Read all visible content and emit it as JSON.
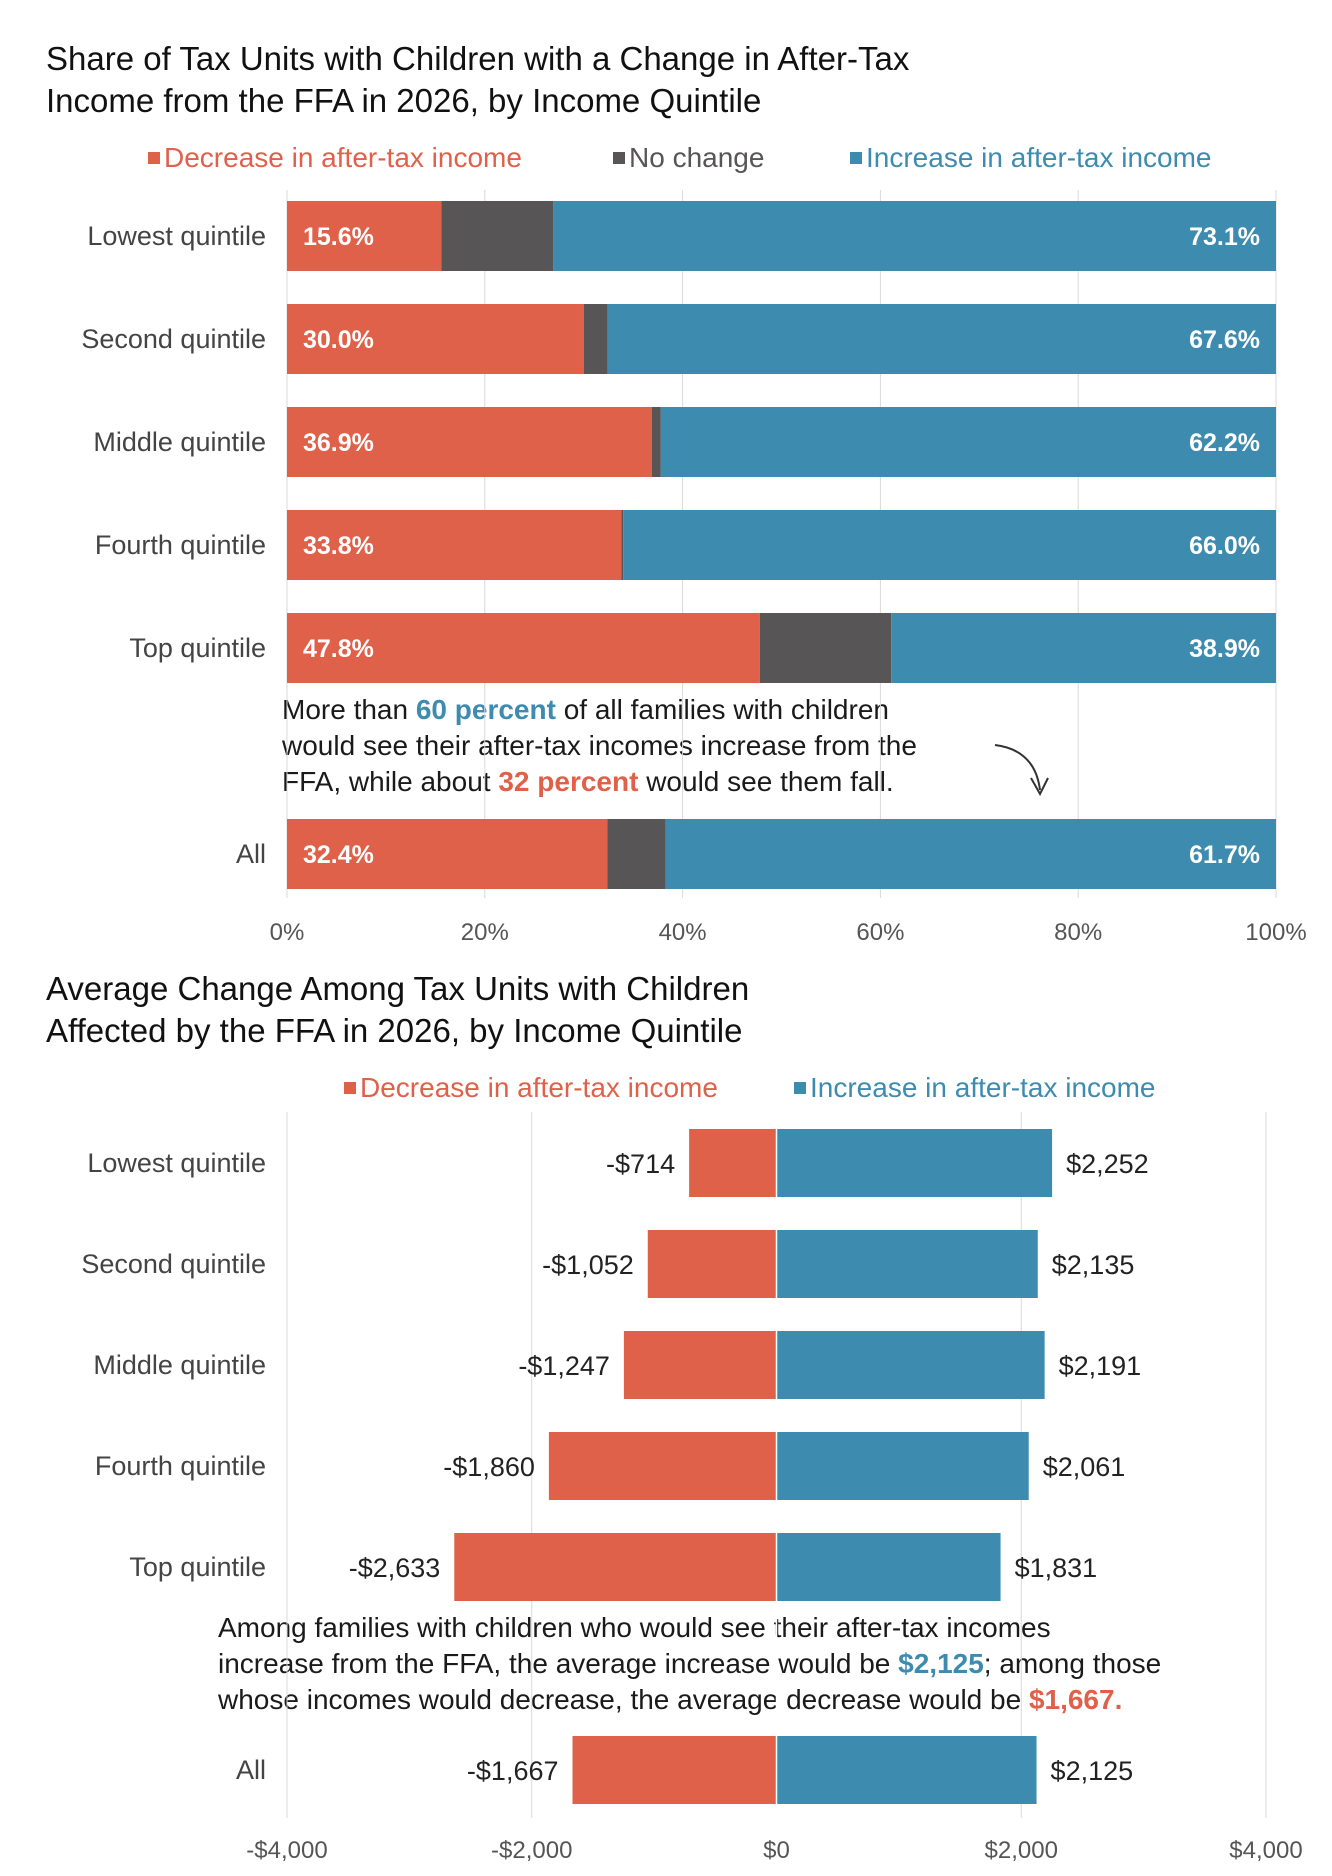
{
  "colors": {
    "decrease": "#e0614a",
    "no_change": "#585556",
    "increase": "#3e8bb0",
    "grid": "#d9d9d9"
  },
  "chart1": {
    "title_line1": "Share of Tax Units with Children with a Change in After-Tax",
    "title_line2": "Income from the FFA in 2026, by Income Quintile",
    "legend": {
      "decrease": "Decrease in after-tax income",
      "no_change": "No change",
      "increase": "Increase in after-tax income"
    },
    "annotation": {
      "pre1": "More than ",
      "hl1": "60 percent",
      "post1": " of all families with children",
      "line2": "would see their after-tax incomes increase from the",
      "pre3": "FFA, while about ",
      "hl2": "32 percent",
      "post3": " would see them fall."
    }
  },
  "chart2": {
    "title_line1": "Average Change Among Tax Units with Children",
    "title_line2": "Affected by the FFA in 2026, by Income Quintile",
    "legend": {
      "decrease": "Decrease in after-tax income",
      "increase": "Increase in after-tax income"
    },
    "annotation": {
      "line1": "Among families with children who would see their after-tax incomes",
      "pre2": "increase from the FFA, the average increase would be ",
      "hl1": "$2,125",
      "post2": "; among those",
      "pre3": "whose incomes would decrease, the average decrease would be ",
      "hl2": "$1,667."
    }
  },
  "chart_data": [
    {
      "type": "bar",
      "orientation": "horizontal",
      "stacked": true,
      "title": "Share of Tax Units with Children with a Change in After-Tax Income from the FFA in 2026, by Income Quintile",
      "categories": [
        "Lowest quintile",
        "Second quintile",
        "Middle quintile",
        "Fourth quintile",
        "Top quintile",
        "All"
      ],
      "series": [
        {
          "name": "Decrease in after-tax income",
          "values": [
            15.6,
            30.0,
            36.9,
            33.8,
            47.8,
            32.4
          ],
          "labels": [
            "15.6%",
            "30.0%",
            "36.9%",
            "33.8%",
            "47.8%",
            "32.4%"
          ]
        },
        {
          "name": "No change",
          "values": [
            11.3,
            2.4,
            0.9,
            0.2,
            13.3,
            5.9
          ]
        },
        {
          "name": "Increase in after-tax income",
          "values": [
            73.1,
            67.6,
            62.2,
            66.0,
            38.9,
            61.7
          ],
          "labels": [
            "73.1%",
            "67.6%",
            "62.2%",
            "66.0%",
            "38.9%",
            "61.7%"
          ]
        }
      ],
      "xlim": [
        0,
        100
      ],
      "xticks": [
        0,
        20,
        40,
        60,
        80,
        100
      ],
      "xtick_labels": [
        "0%",
        "20%",
        "40%",
        "60%",
        "80%",
        "100%"
      ],
      "grid": true,
      "legend": "top"
    },
    {
      "type": "bar",
      "orientation": "horizontal",
      "diverging": true,
      "title": "Average Change Among Tax Units with Children Affected by the FFA in 2026, by Income Quintile",
      "categories": [
        "Lowest quintile",
        "Second quintile",
        "Middle quintile",
        "Fourth quintile",
        "Top quintile",
        "All"
      ],
      "series": [
        {
          "name": "Decrease in after-tax income",
          "values": [
            -714,
            -1052,
            -1247,
            -1860,
            -2633,
            -1667
          ],
          "labels": [
            "-$714",
            "-$1,052",
            "-$1,247",
            "-$1,860",
            "-$2,633",
            "-$1,667"
          ]
        },
        {
          "name": "Increase in after-tax income",
          "values": [
            2252,
            2135,
            2191,
            2061,
            1831,
            2125
          ],
          "labels": [
            "$2,252",
            "$2,135",
            "$2,191",
            "$2,061",
            "$1,831",
            "$2,125"
          ]
        }
      ],
      "xlim": [
        -4000,
        4000
      ],
      "xticks": [
        -4000,
        -2000,
        0,
        2000,
        4000
      ],
      "xtick_labels": [
        "-$4,000",
        "-$2,000",
        "$0",
        "$2,000",
        "$4,000"
      ],
      "grid": true,
      "legend": "top"
    }
  ]
}
